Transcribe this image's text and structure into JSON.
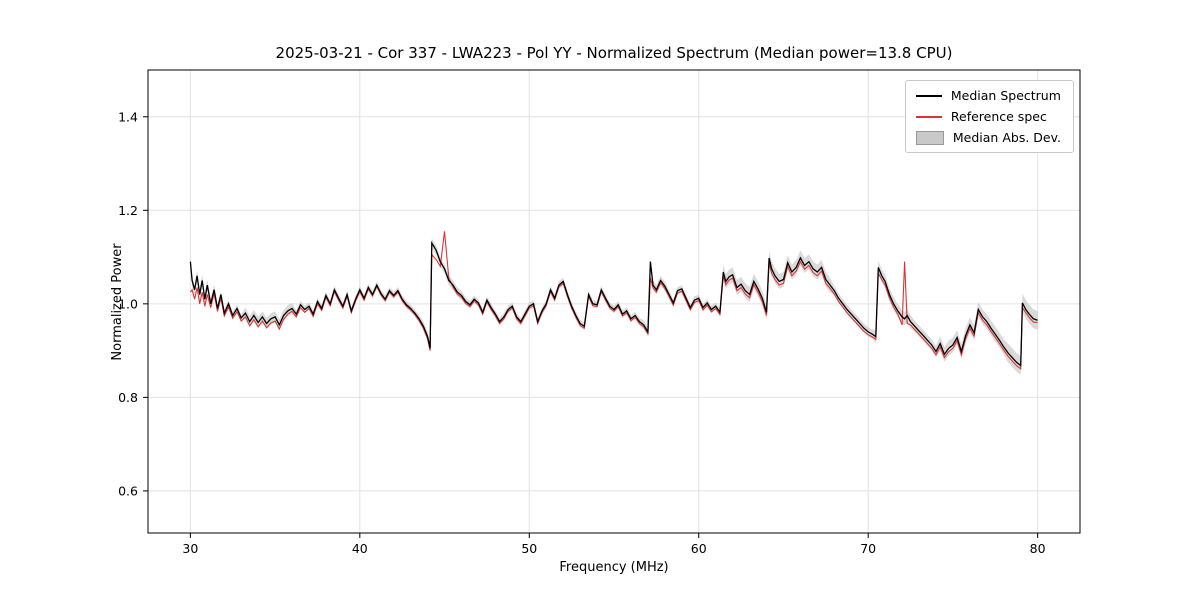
{
  "chart_data": {
    "type": "line",
    "title": "2025-03-21 - Cor 337 - LWA223 - Pol YY - Normalized Spectrum (Median power=13.8 CPU)",
    "xlabel": "Frequency (MHz)",
    "ylabel": "Normalized Power",
    "xlim": [
      27.5,
      82.5
    ],
    "ylim": [
      0.51,
      1.5
    ],
    "xticks": [
      30,
      40,
      50,
      60,
      70,
      80
    ],
    "yticks": [
      0.6,
      0.8,
      1.0,
      1.2,
      1.4
    ],
    "grid": true,
    "legend_position": "upper right",
    "colors": {
      "median": "#000000",
      "reference": "#dd3333",
      "band_fill": "#bbbbbb",
      "band_edge": "#999999",
      "grid": "#e2e2e2",
      "frame": "#000000"
    },
    "series": [
      {
        "name": "Median Spectrum",
        "color": "#000000",
        "kind": "line"
      },
      {
        "name": "Reference spec",
        "color": "#dd3333",
        "kind": "line"
      },
      {
        "name": "Median Abs. Dev.",
        "color": "#bbbbbb",
        "kind": "band"
      }
    ],
    "mad_halfwidth_segments": [
      [
        27.5,
        31.5,
        0.012
      ],
      [
        31.5,
        33.0,
        0.008
      ],
      [
        33.0,
        36.0,
        0.012
      ],
      [
        36.0,
        43.5,
        0.008
      ],
      [
        43.5,
        46.0,
        0.01
      ],
      [
        46.0,
        56.5,
        0.008
      ],
      [
        56.5,
        58.0,
        0.01
      ],
      [
        58.0,
        61.3,
        0.008
      ],
      [
        61.3,
        67.8,
        0.016
      ],
      [
        67.8,
        70.4,
        0.01
      ],
      [
        70.4,
        72.5,
        0.014
      ],
      [
        72.5,
        74.0,
        0.012
      ],
      [
        74.0,
        78.0,
        0.016
      ],
      [
        78.0,
        82.5,
        0.02
      ]
    ],
    "points_format": [
      "frequency_mhz",
      "median_spectrum",
      "reference_spec"
    ],
    "points": [
      [
        30.0,
        1.09,
        1.025
      ],
      [
        30.1,
        1.05,
        1.03
      ],
      [
        30.25,
        1.03,
        1.01
      ],
      [
        30.4,
        1.06,
        1.035
      ],
      [
        30.55,
        1.02,
        1.0
      ],
      [
        30.7,
        1.05,
        1.025
      ],
      [
        30.85,
        1.01,
        0.995
      ],
      [
        31.0,
        1.04,
        1.02
      ],
      [
        31.2,
        1.0,
        0.992
      ],
      [
        31.4,
        1.03,
        1.022
      ],
      [
        31.6,
        0.99,
        0.984
      ],
      [
        31.8,
        1.02,
        1.012
      ],
      [
        32.0,
        0.98,
        0.974
      ],
      [
        32.25,
        1.0,
        0.993
      ],
      [
        32.5,
        0.975,
        0.969
      ],
      [
        32.75,
        0.99,
        0.983
      ],
      [
        33.0,
        0.97,
        0.963
      ],
      [
        33.25,
        0.98,
        0.972
      ],
      [
        33.5,
        0.962,
        0.953
      ],
      [
        33.75,
        0.975,
        0.966
      ],
      [
        34.0,
        0.96,
        0.951
      ],
      [
        34.25,
        0.972,
        0.963
      ],
      [
        34.5,
        0.958,
        0.949
      ],
      [
        34.75,
        0.968,
        0.959
      ],
      [
        35.0,
        0.972,
        0.963
      ],
      [
        35.25,
        0.955,
        0.946
      ],
      [
        35.5,
        0.975,
        0.967
      ],
      [
        35.75,
        0.985,
        0.978
      ],
      [
        36.0,
        0.99,
        0.984
      ],
      [
        36.25,
        0.978,
        0.972
      ],
      [
        36.5,
        0.998,
        0.992
      ],
      [
        36.75,
        0.988,
        0.982
      ],
      [
        37.0,
        0.995,
        0.99
      ],
      [
        37.25,
        0.978,
        0.973
      ],
      [
        37.5,
        1.005,
        1.0
      ],
      [
        37.75,
        0.99,
        0.986
      ],
      [
        38.0,
        1.018,
        1.014
      ],
      [
        38.25,
        1.0,
        0.996
      ],
      [
        38.5,
        1.03,
        1.026
      ],
      [
        38.75,
        1.012,
        1.008
      ],
      [
        39.0,
        0.995,
        0.991
      ],
      [
        39.25,
        1.02,
        1.016
      ],
      [
        39.5,
        0.985,
        0.981
      ],
      [
        39.75,
        1.01,
        1.006
      ],
      [
        40.0,
        1.03,
        1.026
      ],
      [
        40.25,
        1.012,
        1.008
      ],
      [
        40.5,
        1.035,
        1.032
      ],
      [
        40.75,
        1.02,
        1.017
      ],
      [
        41.0,
        1.04,
        1.037
      ],
      [
        41.25,
        1.022,
        1.019
      ],
      [
        41.5,
        1.01,
        1.007
      ],
      [
        41.75,
        1.028,
        1.025
      ],
      [
        42.0,
        1.018,
        1.015
      ],
      [
        42.25,
        1.028,
        1.025
      ],
      [
        42.5,
        1.01,
        1.007
      ],
      [
        42.75,
        0.998,
        0.995
      ],
      [
        43.0,
        0.99,
        0.987
      ],
      [
        43.25,
        0.98,
        0.977
      ],
      [
        43.5,
        0.968,
        0.964
      ],
      [
        43.75,
        0.952,
        0.948
      ],
      [
        44.0,
        0.93,
        0.925
      ],
      [
        44.15,
        0.905,
        0.9
      ],
      [
        44.25,
        1.13,
        1.105
      ],
      [
        44.5,
        1.115,
        1.095
      ],
      [
        44.75,
        1.09,
        1.08
      ],
      [
        45.0,
        1.075,
        1.155
      ],
      [
        45.25,
        1.05,
        1.055
      ],
      [
        45.5,
        1.04,
        1.036
      ],
      [
        45.75,
        1.025,
        1.021
      ],
      [
        46.0,
        1.018,
        1.014
      ],
      [
        46.25,
        1.005,
        1.001
      ],
      [
        46.5,
        0.998,
        0.994
      ],
      [
        46.75,
        1.01,
        1.006
      ],
      [
        47.0,
        1.002,
        0.998
      ],
      [
        47.25,
        0.982,
        0.978
      ],
      [
        47.5,
        1.008,
        1.004
      ],
      [
        47.75,
        0.992,
        0.988
      ],
      [
        48.0,
        0.978,
        0.974
      ],
      [
        48.25,
        0.962,
        0.958
      ],
      [
        48.5,
        0.972,
        0.968
      ],
      [
        48.75,
        0.988,
        0.984
      ],
      [
        49.0,
        0.995,
        0.991
      ],
      [
        49.25,
        0.972,
        0.968
      ],
      [
        49.5,
        0.962,
        0.958
      ],
      [
        49.75,
        0.978,
        0.974
      ],
      [
        50.0,
        0.995,
        0.991
      ],
      [
        50.25,
        1.0,
        0.996
      ],
      [
        50.5,
        0.962,
        0.958
      ],
      [
        50.75,
        0.985,
        0.981
      ],
      [
        51.0,
        1.0,
        0.996
      ],
      [
        51.25,
        1.03,
        1.026
      ],
      [
        51.5,
        1.012,
        1.008
      ],
      [
        51.75,
        1.04,
        1.036
      ],
      [
        52.0,
        1.048,
        1.044
      ],
      [
        52.25,
        1.02,
        1.016
      ],
      [
        52.5,
        0.995,
        0.991
      ],
      [
        52.75,
        0.975,
        0.971
      ],
      [
        53.0,
        0.958,
        0.954
      ],
      [
        53.25,
        0.952,
        0.948
      ],
      [
        53.5,
        1.02,
        1.016
      ],
      [
        53.75,
        1.0,
        0.996
      ],
      [
        54.0,
        0.998,
        0.994
      ],
      [
        54.25,
        1.03,
        1.026
      ],
      [
        54.5,
        1.012,
        1.008
      ],
      [
        54.75,
        0.995,
        0.991
      ],
      [
        55.0,
        0.988,
        0.984
      ],
      [
        55.25,
        0.998,
        0.994
      ],
      [
        55.5,
        0.978,
        0.974
      ],
      [
        55.75,
        0.985,
        0.981
      ],
      [
        56.0,
        0.968,
        0.964
      ],
      [
        56.25,
        0.975,
        0.971
      ],
      [
        56.5,
        0.962,
        0.958
      ],
      [
        56.75,
        0.955,
        0.951
      ],
      [
        57.0,
        0.94,
        0.936
      ],
      [
        57.15,
        1.09,
        1.055
      ],
      [
        57.3,
        1.04,
        1.034
      ],
      [
        57.5,
        1.03,
        1.025
      ],
      [
        57.75,
        1.05,
        1.045
      ],
      [
        58.0,
        1.038,
        1.033
      ],
      [
        58.25,
        1.02,
        1.015
      ],
      [
        58.5,
        1.002,
        0.997
      ],
      [
        58.75,
        1.028,
        1.023
      ],
      [
        59.0,
        1.032,
        1.027
      ],
      [
        59.25,
        1.012,
        1.007
      ],
      [
        59.5,
        0.992,
        0.987
      ],
      [
        59.75,
        1.008,
        1.003
      ],
      [
        60.0,
        1.012,
        1.007
      ],
      [
        60.25,
        0.992,
        0.987
      ],
      [
        60.5,
        1.002,
        0.997
      ],
      [
        60.75,
        0.988,
        0.983
      ],
      [
        61.0,
        0.995,
        0.99
      ],
      [
        61.25,
        0.982,
        0.977
      ],
      [
        61.45,
        1.068,
        1.06
      ],
      [
        61.6,
        1.048,
        1.041
      ],
      [
        61.8,
        1.058,
        1.051
      ],
      [
        62.0,
        1.062,
        1.055
      ],
      [
        62.25,
        1.035,
        1.028
      ],
      [
        62.5,
        1.042,
        1.035
      ],
      [
        62.75,
        1.028,
        1.021
      ],
      [
        63.0,
        1.02,
        1.013
      ],
      [
        63.25,
        1.048,
        1.041
      ],
      [
        63.5,
        1.032,
        1.025
      ],
      [
        63.75,
        1.012,
        1.005
      ],
      [
        64.0,
        0.982,
        0.975
      ],
      [
        64.15,
        1.098,
        1.088
      ],
      [
        64.3,
        1.075,
        1.066
      ],
      [
        64.5,
        1.06,
        1.052
      ],
      [
        64.75,
        1.048,
        1.04
      ],
      [
        65.0,
        1.052,
        1.044
      ],
      [
        65.25,
        1.088,
        1.08
      ],
      [
        65.5,
        1.068,
        1.06
      ],
      [
        65.75,
        1.078,
        1.07
      ],
      [
        66.0,
        1.098,
        1.09
      ],
      [
        66.25,
        1.082,
        1.074
      ],
      [
        66.5,
        1.09,
        1.082
      ],
      [
        66.75,
        1.075,
        1.067
      ],
      [
        67.0,
        1.068,
        1.06
      ],
      [
        67.25,
        1.078,
        1.07
      ],
      [
        67.5,
        1.052,
        1.044
      ],
      [
        67.75,
        1.04,
        1.033
      ],
      [
        68.0,
        1.028,
        1.021
      ],
      [
        68.25,
        1.012,
        1.005
      ],
      [
        68.5,
        1.0,
        0.993
      ],
      [
        68.75,
        0.988,
        0.981
      ],
      [
        69.0,
        0.978,
        0.971
      ],
      [
        69.25,
        0.968,
        0.961
      ],
      [
        69.5,
        0.958,
        0.951
      ],
      [
        69.75,
        0.948,
        0.941
      ],
      [
        70.0,
        0.94,
        0.934
      ],
      [
        70.25,
        0.935,
        0.929
      ],
      [
        70.45,
        0.93,
        0.924
      ],
      [
        70.6,
        1.078,
        1.065
      ],
      [
        70.8,
        1.06,
        1.052
      ],
      [
        71.0,
        1.048,
        1.04
      ],
      [
        71.25,
        1.02,
        1.013
      ],
      [
        71.5,
        1.0,
        0.993
      ],
      [
        71.75,
        0.985,
        0.978
      ],
      [
        72.0,
        0.972,
        0.955
      ],
      [
        72.15,
        0.968,
        1.09
      ],
      [
        72.3,
        0.975,
        0.958
      ],
      [
        72.5,
        0.962,
        0.955
      ],
      [
        72.75,
        0.952,
        0.945
      ],
      [
        73.0,
        0.942,
        0.935
      ],
      [
        73.25,
        0.932,
        0.925
      ],
      [
        73.5,
        0.922,
        0.915
      ],
      [
        73.75,
        0.912,
        0.905
      ],
      [
        74.0,
        0.898,
        0.891
      ],
      [
        74.25,
        0.915,
        0.908
      ],
      [
        74.5,
        0.892,
        0.885
      ],
      [
        74.75,
        0.905,
        0.898
      ],
      [
        75.0,
        0.912,
        0.905
      ],
      [
        75.25,
        0.928,
        0.921
      ],
      [
        75.5,
        0.898,
        0.891
      ],
      [
        75.75,
        0.932,
        0.925
      ],
      [
        76.0,
        0.955,
        0.948
      ],
      [
        76.25,
        0.938,
        0.931
      ],
      [
        76.5,
        0.988,
        0.981
      ],
      [
        76.75,
        0.972,
        0.965
      ],
      [
        77.0,
        0.962,
        0.955
      ],
      [
        77.25,
        0.948,
        0.941
      ],
      [
        77.5,
        0.935,
        0.928
      ],
      [
        77.75,
        0.922,
        0.915
      ],
      [
        78.0,
        0.908,
        0.901
      ],
      [
        78.25,
        0.895,
        0.888
      ],
      [
        78.5,
        0.885,
        0.878
      ],
      [
        78.75,
        0.875,
        0.868
      ],
      [
        79.0,
        0.868,
        0.861
      ],
      [
        79.1,
        1.002,
        0.992
      ],
      [
        79.3,
        0.988,
        0.981
      ],
      [
        79.5,
        0.978,
        0.971
      ],
      [
        79.75,
        0.968,
        0.961
      ],
      [
        80.0,
        0.965,
        0.96
      ]
    ]
  }
}
